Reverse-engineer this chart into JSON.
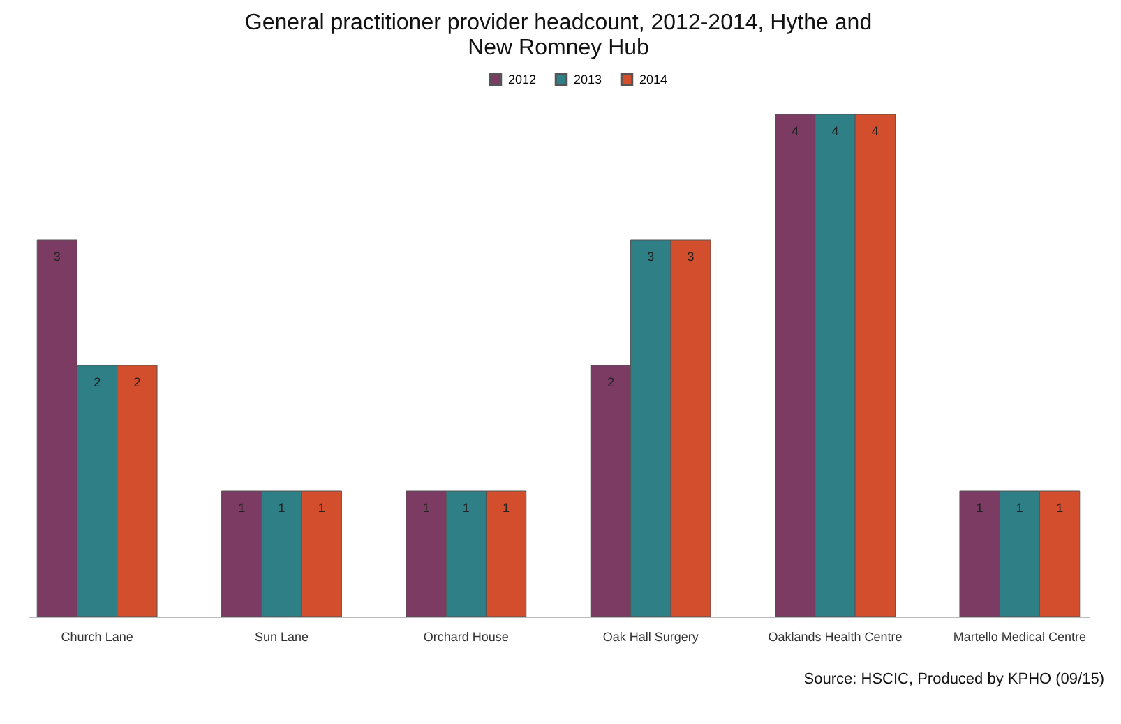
{
  "chart_data": {
    "type": "bar",
    "title": [
      "General practitioner provider headcount, 2012-2014, Hythe and",
      "New Romney  Hub"
    ],
    "categories": [
      "Church Lane",
      "Sun Lane",
      "Orchard House",
      "Oak Hall Surgery",
      "Oaklands Health Centre",
      "Martello Medical Centre"
    ],
    "series": [
      {
        "name": "2012",
        "color": "#7b3b62",
        "values": [
          3,
          1,
          1,
          2,
          4,
          1
        ]
      },
      {
        "name": "2013",
        "color": "#2e7f86",
        "values": [
          2,
          1,
          1,
          3,
          4,
          1
        ]
      },
      {
        "name": "2014",
        "color": "#d24e2c",
        "values": [
          2,
          1,
          1,
          3,
          4,
          1
        ]
      }
    ],
    "ylim": [
      0,
      4
    ],
    "data_labels": true,
    "legend": "top",
    "tick_labels": "x",
    "annotations": [
      "Source: HSCIC, Produced by KPHO (09/15)"
    ]
  }
}
